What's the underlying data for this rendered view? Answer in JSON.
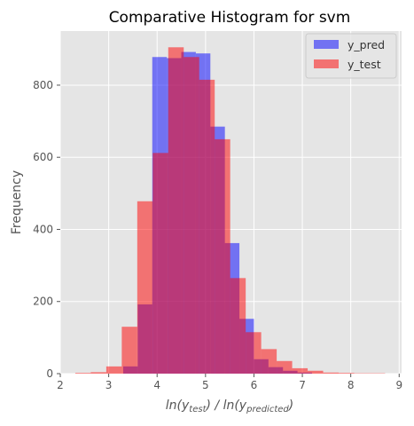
{
  "chart_data": {
    "type": "bar",
    "title": "Comparative Histogram for svm",
    "xlabel_parts": [
      "ln(y",
      "test",
      ") / ln(y",
      "predicted",
      ")"
    ],
    "ylabel": "Frequency",
    "xlim": [
      2.0,
      9.05
    ],
    "ylim": [
      0,
      950
    ],
    "x_ticks": [
      2,
      3,
      4,
      5,
      6,
      7,
      8,
      9
    ],
    "y_ticks": [
      0,
      200,
      400,
      600,
      800
    ],
    "grid": true,
    "legend_position": "top-right",
    "colors": {
      "background": "#e5e5e5",
      "grid": "#ffffff",
      "tick": "#555555",
      "y_pred": "#0000ff",
      "y_test": "#ff0000",
      "opacity": 0.5
    },
    "series": [
      {
        "name": "y_pred",
        "edges": [
          3.3,
          3.6,
          3.9,
          4.2,
          4.5,
          4.8,
          5.1,
          5.4,
          5.7,
          6.0,
          6.3,
          6.6,
          6.9,
          7.2
        ],
        "values": [
          20,
          192,
          878,
          875,
          892,
          888,
          685,
          362,
          152,
          40,
          18,
          8,
          3
        ]
      },
      {
        "name": "y_test",
        "edges": [
          2.31,
          2.63,
          2.95,
          3.27,
          3.59,
          3.91,
          4.23,
          4.55,
          4.87,
          5.19,
          5.51,
          5.83,
          6.15,
          6.47,
          6.79,
          7.11,
          7.43,
          7.75,
          8.07,
          8.39,
          8.71
        ],
        "values": [
          2,
          4,
          20,
          130,
          478,
          612,
          905,
          878,
          815,
          650,
          265,
          115,
          68,
          35,
          15,
          8,
          3,
          2,
          1,
          1
        ]
      }
    ]
  }
}
